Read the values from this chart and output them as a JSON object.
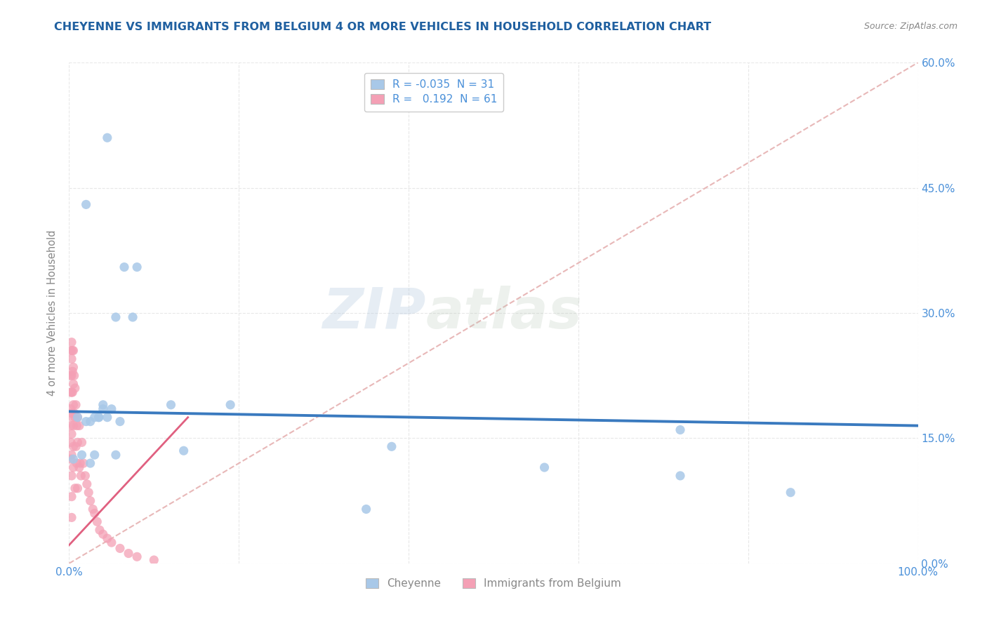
{
  "title": "CHEYENNE VS IMMIGRANTS FROM BELGIUM 4 OR MORE VEHICLES IN HOUSEHOLD CORRELATION CHART",
  "source": "Source: ZipAtlas.com",
  "ylabel": "4 or more Vehicles in Household",
  "xmin": 0.0,
  "xmax": 1.0,
  "ymin": 0.0,
  "ymax": 0.6,
  "blue_scatter_x": [
    0.045,
    0.02,
    0.065,
    0.08,
    0.055,
    0.075,
    0.04,
    0.05,
    0.035,
    0.04,
    0.045,
    0.06,
    0.12,
    0.19,
    0.38,
    0.72,
    0.56,
    0.85,
    0.35,
    0.01,
    0.02,
    0.025,
    0.03,
    0.035,
    0.005,
    0.015,
    0.025,
    0.03,
    0.055,
    0.135,
    0.72
  ],
  "blue_scatter_y": [
    0.51,
    0.43,
    0.355,
    0.355,
    0.295,
    0.295,
    0.19,
    0.185,
    0.175,
    0.185,
    0.175,
    0.17,
    0.19,
    0.19,
    0.14,
    0.16,
    0.115,
    0.085,
    0.065,
    0.175,
    0.17,
    0.17,
    0.175,
    0.175,
    0.125,
    0.13,
    0.12,
    0.13,
    0.13,
    0.135,
    0.105
  ],
  "pink_scatter_x": [
    0.002,
    0.002,
    0.002,
    0.002,
    0.002,
    0.002,
    0.002,
    0.003,
    0.003,
    0.003,
    0.003,
    0.003,
    0.003,
    0.003,
    0.003,
    0.003,
    0.003,
    0.004,
    0.004,
    0.004,
    0.004,
    0.005,
    0.005,
    0.005,
    0.005,
    0.005,
    0.005,
    0.005,
    0.006,
    0.006,
    0.007,
    0.007,
    0.007,
    0.008,
    0.008,
    0.009,
    0.009,
    0.01,
    0.01,
    0.01,
    0.012,
    0.012,
    0.013,
    0.014,
    0.015,
    0.017,
    0.019,
    0.021,
    0.023,
    0.025,
    0.028,
    0.03,
    0.033,
    0.036,
    0.04,
    0.045,
    0.05,
    0.06,
    0.07,
    0.08,
    0.1
  ],
  "pink_scatter_y": [
    0.255,
    0.225,
    0.205,
    0.185,
    0.165,
    0.145,
    0.125,
    0.265,
    0.245,
    0.225,
    0.205,
    0.18,
    0.155,
    0.13,
    0.105,
    0.08,
    0.055,
    0.255,
    0.23,
    0.205,
    0.175,
    0.255,
    0.235,
    0.215,
    0.19,
    0.165,
    0.14,
    0.115,
    0.225,
    0.18,
    0.21,
    0.175,
    0.09,
    0.19,
    0.14,
    0.165,
    0.12,
    0.175,
    0.145,
    0.09,
    0.165,
    0.115,
    0.12,
    0.105,
    0.145,
    0.12,
    0.105,
    0.095,
    0.085,
    0.075,
    0.065,
    0.06,
    0.05,
    0.04,
    0.035,
    0.03,
    0.025,
    0.018,
    0.012,
    0.008,
    0.004
  ],
  "blue_line_x": [
    0.0,
    1.0
  ],
  "blue_line_y": [
    0.182,
    0.165
  ],
  "pink_line_x": [
    0.0,
    0.14
  ],
  "pink_line_y": [
    0.022,
    0.175
  ],
  "diagonal_line_x": [
    0.0,
    1.0
  ],
  "diagonal_line_y": [
    0.0,
    0.6
  ],
  "blue_color": "#a8c8e8",
  "pink_color": "#f4a0b5",
  "blue_line_color": "#3a7abf",
  "pink_line_color": "#e06080",
  "diagonal_color": "#e8b8b8",
  "legend_blue_label_r": "R = -0.035",
  "legend_blue_label_n": "N = 31",
  "legend_pink_label_r": "R =   0.192",
  "legend_pink_label_n": "N = 61",
  "watermark_zip": "ZIP",
  "watermark_atlas": "atlas",
  "title_color": "#2060a0",
  "axis_label_color": "#888888",
  "tick_color_blue": "#4a90d9",
  "grid_color": "#e8e8e8",
  "background_color": "#ffffff",
  "legend_label_color": "#4a90d9"
}
